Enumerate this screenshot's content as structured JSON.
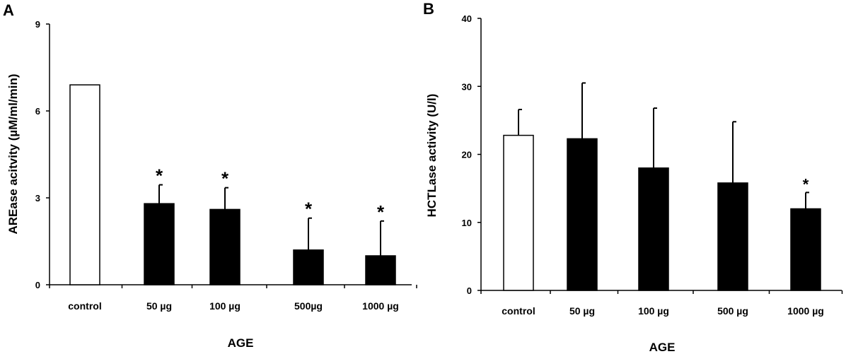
{
  "chart_data": [
    {
      "type": "bar",
      "panel_label": "A",
      "categories": [
        "control",
        "50 µg",
        "100 µg",
        "500µg",
        "1000 µg"
      ],
      "values": [
        6.9,
        2.8,
        2.6,
        1.2,
        1.0
      ],
      "error_plus": [
        0,
        0.65,
        0.75,
        1.1,
        1.2
      ],
      "fills": [
        "#ffffff",
        "#000000",
        "#000000",
        "#000000",
        "#000000"
      ],
      "significance": [
        "",
        "*",
        "*",
        "*",
        "*"
      ],
      "xlabel": "AGE",
      "ylabel": "AREase acitvity (µM/ml/min)",
      "ylim": [
        0,
        9
      ],
      "yticks": [
        0,
        3,
        6,
        9
      ],
      "grid": false,
      "legend": "none"
    },
    {
      "type": "bar",
      "panel_label": "B",
      "categories": [
        "control",
        "50 µg",
        "100 µg",
        "500 µg",
        "1000 µg"
      ],
      "values": [
        22.8,
        22.3,
        18.0,
        15.8,
        12.0
      ],
      "error_plus": [
        3.8,
        8.2,
        8.8,
        9.0,
        2.4
      ],
      "fills": [
        "#ffffff",
        "#000000",
        "#000000",
        "#000000",
        "#000000"
      ],
      "significance": [
        "",
        "",
        "",
        "",
        "*"
      ],
      "xlabel": "AGE",
      "ylabel": "HCTLase activity (U/l)",
      "ylim": [
        0,
        40
      ],
      "yticks": [
        0,
        10,
        20,
        30,
        40
      ],
      "grid": false,
      "legend": "none"
    }
  ]
}
